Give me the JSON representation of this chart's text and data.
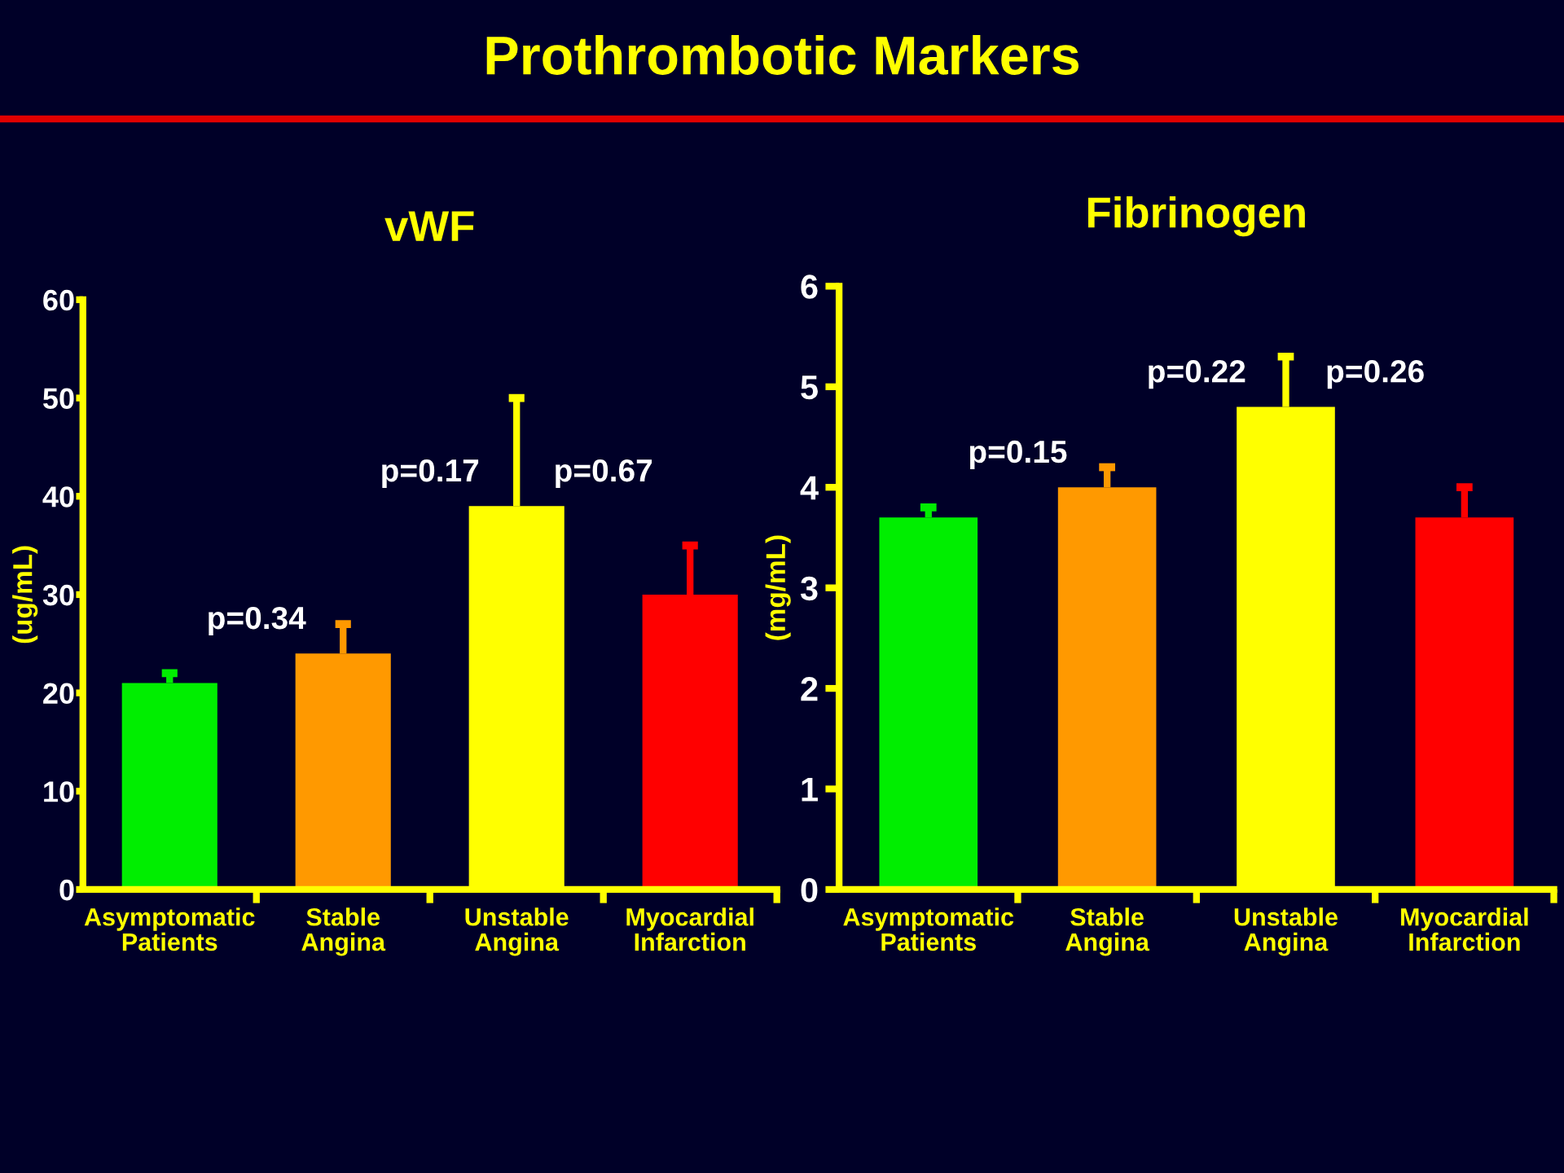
{
  "chart_data": [
    {
      "type": "bar",
      "title": "Prothrombotic Markers",
      "subtitle": "vWF",
      "ylabel": "(ug/mL)",
      "categories": [
        "Asymptomatic Patients",
        "Stable Angina",
        "Unstable Angina",
        "Myocardial Infarction"
      ],
      "values": [
        21,
        24,
        39,
        30
      ],
      "colors": [
        "#00ee00",
        "#ff9900",
        "#ffff00",
        "#ff0000"
      ],
      "errors": [
        [
          21,
          22
        ],
        [
          24,
          27
        ],
        [
          39,
          50
        ],
        [
          30,
          35
        ]
      ],
      "ylim": [
        0,
        60
      ],
      "yticks": [
        0,
        10,
        20,
        30,
        40,
        50,
        60
      ],
      "annotations": [
        "p=0.34",
        "p=0.17",
        "p=0.67"
      ]
    },
    {
      "type": "bar",
      "subtitle": "Fibrinogen",
      "ylabel": "(mg/mL)",
      "categories": [
        "Asymptomatic Patients",
        "Stable Angina",
        "Unstable Angina",
        "Myocardial Infarction"
      ],
      "values": [
        3.7,
        4.0,
        4.8,
        3.7
      ],
      "colors": [
        "#00ee00",
        "#ff9900",
        "#ffff00",
        "#ff0000"
      ],
      "errors": [
        [
          3.7,
          3.8
        ],
        [
          4.0,
          4.2
        ],
        [
          4.8,
          5.3
        ],
        [
          3.7,
          4.0
        ]
      ],
      "ylim": [
        0,
        6
      ],
      "yticks": [
        0,
        1,
        2,
        3,
        4,
        5,
        6
      ],
      "annotations": [
        "p=0.15",
        "p=0.22",
        "p=0.26"
      ]
    }
  ]
}
